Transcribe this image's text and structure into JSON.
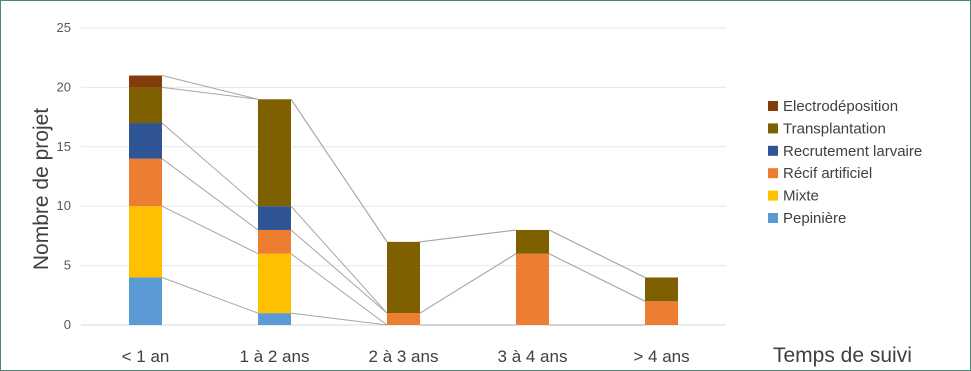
{
  "chart_data": {
    "type": "bar",
    "stacked": true,
    "title": "",
    "xlabel": "Temps de suivi",
    "ylabel": "Nombre de projet",
    "ylim": [
      0,
      25
    ],
    "yticks": [
      0,
      5,
      10,
      15,
      20,
      25
    ],
    "grid": true,
    "legend_position": "right",
    "series_lines": true,
    "categories": [
      "< 1 an",
      "1 à 2 ans",
      "2 à 3 ans",
      "3 à 4 ans",
      "> 4 ans"
    ],
    "series": [
      {
        "name": "Pepinière",
        "color": "#5b9bd5",
        "values": [
          4,
          1,
          0,
          0,
          0
        ]
      },
      {
        "name": "Mixte",
        "color": "#ffc000",
        "values": [
          6,
          5,
          0,
          0,
          0
        ]
      },
      {
        "name": "Récif artificiel",
        "color": "#ed7d31",
        "values": [
          4,
          2,
          1,
          6,
          2
        ]
      },
      {
        "name": "Recrutement larvaire",
        "color": "#2f5597",
        "values": [
          3,
          2,
          0,
          0,
          0
        ]
      },
      {
        "name": "Transplantation",
        "color": "#7f6000",
        "values": [
          3,
          9,
          6,
          2,
          2
        ]
      },
      {
        "name": "Electrodéposition",
        "color": "#843c0c",
        "values": [
          1,
          0,
          0,
          0,
          0
        ]
      }
    ]
  }
}
